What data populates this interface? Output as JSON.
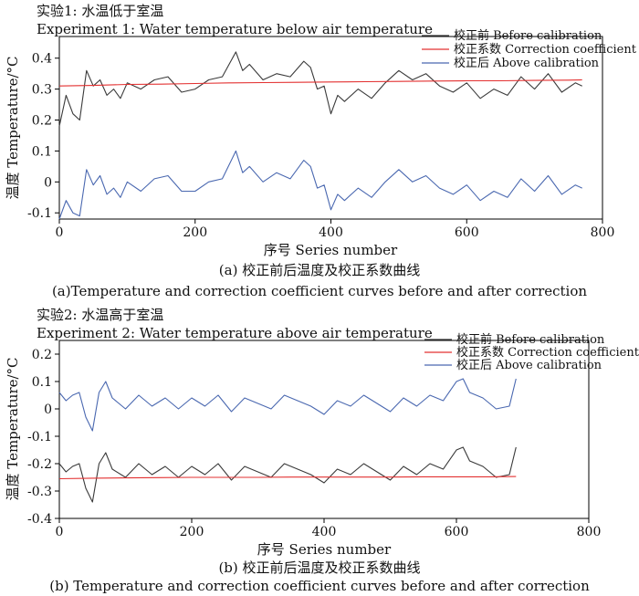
{
  "colors": {
    "before": "#3a3a3a",
    "coefficient": "#e33030",
    "after": "#4a68b0",
    "axis": "#000000"
  },
  "chart_data": [
    {
      "type": "line",
      "title_cn": "实验1: 水温低于室温",
      "title_en": "Experiment 1: Water temperature below air temperature",
      "xlabel": "序号 Series number",
      "ylabel": "温度 Temperature/°C",
      "xlim": [
        0,
        800
      ],
      "ylim": [
        -0.12,
        0.47
      ],
      "x_ticks": [
        "0",
        "200",
        "400",
        "600",
        "800"
      ],
      "x_tick_values": [
        0,
        200,
        400,
        600,
        800
      ],
      "y_ticks": [
        "-0.1",
        "0",
        "0.1",
        "0.2",
        "0.3",
        "0.4"
      ],
      "y_tick_values": [
        -0.1,
        0,
        0.1,
        0.2,
        0.3,
        0.4
      ],
      "caption_cn": "(a) 校正前后温度及校正系数曲线",
      "caption_en": "(a)Temperature and correction coefficient curves before and after correction",
      "series": [
        {
          "name": "校正前 Before calibration",
          "color_key": "before",
          "x": [
            0,
            10,
            20,
            30,
            40,
            50,
            60,
            70,
            80,
            90,
            100,
            120,
            140,
            160,
            180,
            200,
            220,
            240,
            260,
            270,
            280,
            300,
            320,
            340,
            360,
            370,
            380,
            390,
            400,
            410,
            420,
            440,
            460,
            480,
            500,
            520,
            540,
            560,
            580,
            600,
            620,
            640,
            660,
            680,
            700,
            720,
            740,
            760,
            770
          ],
          "values": [
            0.18,
            0.28,
            0.22,
            0.2,
            0.36,
            0.31,
            0.33,
            0.28,
            0.3,
            0.27,
            0.32,
            0.3,
            0.33,
            0.34,
            0.29,
            0.3,
            0.33,
            0.34,
            0.42,
            0.36,
            0.38,
            0.33,
            0.35,
            0.34,
            0.39,
            0.37,
            0.3,
            0.31,
            0.22,
            0.28,
            0.26,
            0.3,
            0.27,
            0.32,
            0.36,
            0.33,
            0.35,
            0.31,
            0.29,
            0.32,
            0.27,
            0.3,
            0.28,
            0.34,
            0.3,
            0.35,
            0.29,
            0.32,
            0.31
          ]
        },
        {
          "name": "校正系数 Correction coefficient",
          "color_key": "coefficient",
          "x": [
            0,
            50,
            100,
            150,
            200,
            250,
            300,
            350,
            400,
            450,
            500,
            550,
            600,
            650,
            700,
            750,
            770
          ],
          "values": [
            0.31,
            0.312,
            0.315,
            0.316,
            0.318,
            0.32,
            0.321,
            0.322,
            0.323,
            0.324,
            0.325,
            0.326,
            0.327,
            0.327,
            0.328,
            0.329,
            0.33
          ]
        },
        {
          "name": "校正后 Above calibration",
          "color_key": "after",
          "x": [
            0,
            10,
            20,
            30,
            40,
            50,
            60,
            70,
            80,
            90,
            100,
            120,
            140,
            160,
            180,
            200,
            220,
            240,
            260,
            270,
            280,
            300,
            320,
            340,
            360,
            370,
            380,
            390,
            400,
            410,
            420,
            440,
            460,
            480,
            500,
            520,
            540,
            560,
            580,
            600,
            620,
            640,
            660,
            680,
            700,
            720,
            740,
            760,
            770
          ],
          "values": [
            -0.12,
            -0.06,
            -0.1,
            -0.11,
            0.04,
            -0.01,
            0.02,
            -0.04,
            -0.02,
            -0.05,
            0.0,
            -0.03,
            0.01,
            0.02,
            -0.03,
            -0.03,
            0.0,
            0.01,
            0.1,
            0.03,
            0.05,
            0.0,
            0.03,
            0.01,
            0.07,
            0.05,
            -0.02,
            -0.01,
            -0.09,
            -0.04,
            -0.06,
            -0.02,
            -0.05,
            0.0,
            0.04,
            0.0,
            0.02,
            -0.02,
            -0.04,
            -0.01,
            -0.06,
            -0.03,
            -0.05,
            0.01,
            -0.03,
            0.02,
            -0.04,
            -0.01,
            -0.02
          ]
        }
      ]
    },
    {
      "type": "line",
      "title_cn": "实验2: 水温高于室温",
      "title_en": "Experiment 2: Water temperature above air temperature",
      "xlabel": "序号 Series number",
      "ylabel": "温度 Temperature/°C",
      "xlim": [
        0,
        800
      ],
      "ylim": [
        -0.4,
        0.25
      ],
      "x_ticks": [
        "0",
        "200",
        "400",
        "600",
        "800"
      ],
      "x_tick_values": [
        0,
        200,
        400,
        600,
        800
      ],
      "y_ticks": [
        "-0.4",
        "-0.3",
        "-0.2",
        "-0.1",
        "0",
        "0.1",
        "0.2"
      ],
      "y_tick_values": [
        -0.4,
        -0.3,
        -0.2,
        -0.1,
        0,
        0.1,
        0.2
      ],
      "caption_cn": "(b) 校正前后温度及校正系数曲线",
      "caption_en": "(b) Temperature and correction coefficient curves before and after correction",
      "series": [
        {
          "name": "校正前 Before calibration",
          "color_key": "before",
          "x": [
            0,
            10,
            20,
            30,
            40,
            50,
            60,
            70,
            80,
            100,
            120,
            140,
            160,
            180,
            200,
            220,
            240,
            260,
            280,
            300,
            320,
            340,
            360,
            380,
            400,
            420,
            440,
            460,
            480,
            500,
            520,
            540,
            560,
            580,
            600,
            610,
            620,
            640,
            660,
            680,
            690
          ],
          "values": [
            -0.2,
            -0.23,
            -0.21,
            -0.2,
            -0.29,
            -0.34,
            -0.2,
            -0.16,
            -0.22,
            -0.25,
            -0.2,
            -0.24,
            -0.21,
            -0.25,
            -0.21,
            -0.24,
            -0.2,
            -0.26,
            -0.21,
            -0.23,
            -0.25,
            -0.2,
            -0.22,
            -0.24,
            -0.27,
            -0.22,
            -0.24,
            -0.2,
            -0.23,
            -0.26,
            -0.21,
            -0.24,
            -0.2,
            -0.22,
            -0.15,
            -0.14,
            -0.19,
            -0.21,
            -0.25,
            -0.24,
            -0.14
          ]
        },
        {
          "name": "校正系数 Correction coefficient",
          "color_key": "coefficient",
          "x": [
            0,
            50,
            100,
            150,
            200,
            250,
            300,
            350,
            400,
            450,
            500,
            550,
            600,
            650,
            690
          ],
          "values": [
            -0.255,
            -0.253,
            -0.252,
            -0.251,
            -0.25,
            -0.25,
            -0.25,
            -0.249,
            -0.249,
            -0.249,
            -0.249,
            -0.248,
            -0.248,
            -0.248,
            -0.247
          ]
        },
        {
          "name": "校正后 Above calibration",
          "color_key": "after",
          "x": [
            0,
            10,
            20,
            30,
            40,
            50,
            60,
            70,
            80,
            100,
            120,
            140,
            160,
            180,
            200,
            220,
            240,
            260,
            280,
            300,
            320,
            340,
            360,
            380,
            400,
            420,
            440,
            460,
            480,
            500,
            520,
            540,
            560,
            580,
            600,
            610,
            620,
            640,
            660,
            680,
            690
          ],
          "values": [
            0.06,
            0.03,
            0.05,
            0.06,
            -0.03,
            -0.08,
            0.06,
            0.1,
            0.04,
            0.0,
            0.05,
            0.01,
            0.04,
            0.0,
            0.04,
            0.01,
            0.05,
            -0.01,
            0.04,
            0.02,
            0.0,
            0.05,
            0.03,
            0.01,
            -0.02,
            0.03,
            0.01,
            0.05,
            0.02,
            -0.01,
            0.04,
            0.01,
            0.05,
            0.03,
            0.1,
            0.11,
            0.06,
            0.04,
            0.0,
            0.01,
            0.11
          ]
        }
      ]
    }
  ]
}
